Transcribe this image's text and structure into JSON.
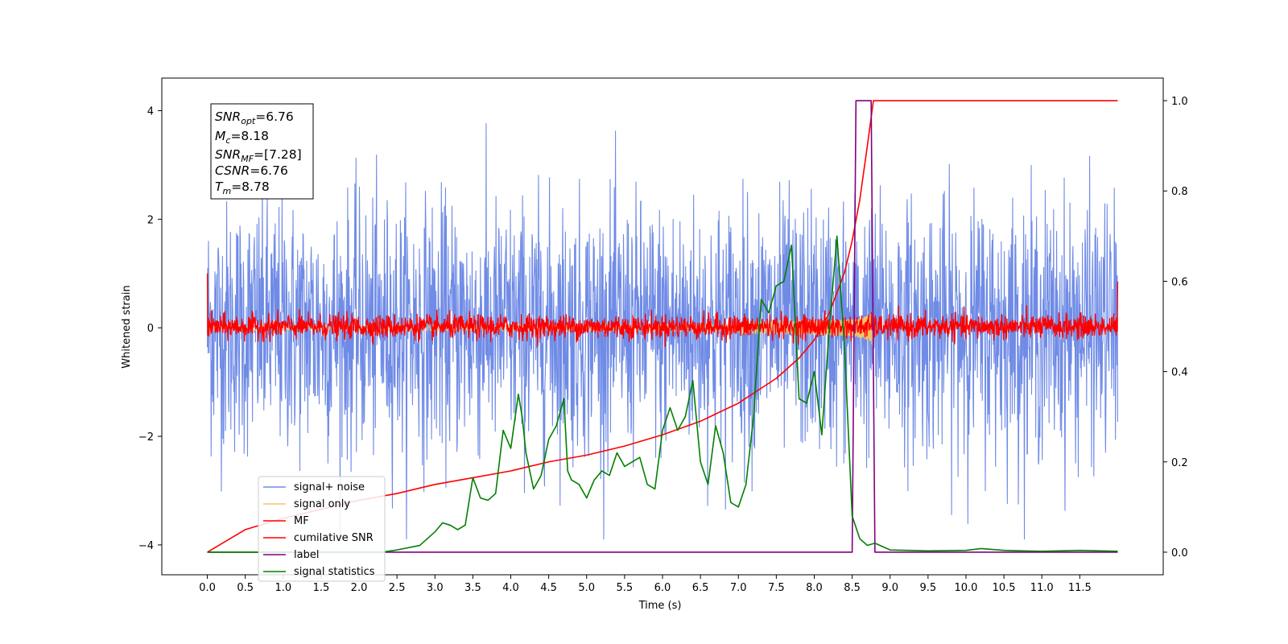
{
  "chart_data": {
    "type": "line",
    "xlabel": "Time (s)",
    "ylabel_left": "Whitened strain",
    "ylabel_right": "",
    "xlim": [
      -0.6,
      12.6
    ],
    "ylim_left": [
      -4.55,
      4.6
    ],
    "ylim_right": [
      -0.05,
      1.05
    ],
    "x_ticks": [
      "0.0",
      "0.5",
      "1.0",
      "1.5",
      "2.0",
      "2.5",
      "3.0",
      "3.5",
      "4.0",
      "4.5",
      "5.0",
      "5.5",
      "6.0",
      "6.5",
      "7.0",
      "7.5",
      "8.0",
      "8.5",
      "9.0",
      "9.5",
      "10.0",
      "10.5",
      "11.0",
      "11.5"
    ],
    "y_ticks_left": [
      "−4",
      "−2",
      "0",
      "2",
      "4"
    ],
    "y_ticks_right": [
      "0.0",
      "0.2",
      "0.4",
      "0.6",
      "0.8",
      "1.0"
    ],
    "grid": false,
    "legend_position": "lower-left",
    "colors": {
      "signal_noise": "#6f8be6",
      "signal_only": "#f5c46a",
      "mf": "#ff0000",
      "cumulative": "#ff0000",
      "label": "#800080",
      "statistics": "#008000"
    },
    "series": [
      {
        "name": "signal+ noise",
        "style": "noisy",
        "x_range": [
          0,
          12
        ],
        "y_approx_range": [
          -3.9,
          4.2
        ]
      },
      {
        "name": "signal only",
        "style": "chirp",
        "x_range": [
          0,
          8.78
        ],
        "peak_amplitude": 0.55
      },
      {
        "name": "MF",
        "style": "noisy",
        "x_range": [
          0,
          12
        ],
        "y_approx_range": [
          -0.25,
          0.45
        ]
      },
      {
        "name": "cumilative SNR",
        "axis": "right",
        "x": [
          0,
          0.5,
          1.0,
          1.5,
          2.0,
          2.5,
          3.0,
          3.5,
          4.0,
          4.5,
          5.0,
          5.5,
          6.0,
          6.5,
          7.0,
          7.5,
          7.8,
          8.0,
          8.2,
          8.4,
          8.5,
          8.6,
          8.7,
          8.78,
          12.0
        ],
        "y": [
          0.0,
          0.05,
          0.075,
          0.095,
          0.115,
          0.13,
          0.15,
          0.165,
          0.18,
          0.2,
          0.215,
          0.235,
          0.26,
          0.29,
          0.33,
          0.385,
          0.43,
          0.47,
          0.53,
          0.62,
          0.69,
          0.78,
          0.9,
          1.0,
          1.0
        ]
      },
      {
        "name": "label",
        "axis": "right",
        "x": [
          0,
          8.5,
          8.55,
          8.75,
          8.8,
          12.0
        ],
        "y": [
          0,
          0,
          1,
          1,
          0,
          0
        ]
      },
      {
        "name": "signal statistics",
        "axis": "right",
        "x": [
          0,
          0.5,
          1.0,
          1.5,
          2.0,
          2.3,
          2.5,
          2.8,
          3.0,
          3.1,
          3.2,
          3.3,
          3.4,
          3.5,
          3.6,
          3.7,
          3.8,
          3.9,
          4.0,
          4.1,
          4.15,
          4.2,
          4.3,
          4.4,
          4.5,
          4.6,
          4.7,
          4.75,
          4.8,
          4.9,
          5.0,
          5.1,
          5.2,
          5.3,
          5.4,
          5.5,
          5.6,
          5.7,
          5.8,
          5.9,
          6.0,
          6.1,
          6.2,
          6.3,
          6.4,
          6.5,
          6.6,
          6.7,
          6.8,
          6.9,
          7.0,
          7.1,
          7.2,
          7.3,
          7.4,
          7.5,
          7.6,
          7.7,
          7.8,
          7.9,
          8.0,
          8.1,
          8.2,
          8.3,
          8.4,
          8.5,
          8.6,
          8.7,
          8.8,
          9.0,
          9.5,
          10.0,
          10.2,
          10.5,
          11.0,
          11.5,
          12.0
        ],
        "y": [
          0.0,
          0.0,
          0.0,
          0.0,
          0.0,
          0.0,
          0.005,
          0.015,
          0.045,
          0.065,
          0.06,
          0.05,
          0.06,
          0.165,
          0.12,
          0.115,
          0.13,
          0.27,
          0.23,
          0.35,
          0.3,
          0.22,
          0.14,
          0.17,
          0.25,
          0.28,
          0.34,
          0.18,
          0.16,
          0.15,
          0.12,
          0.16,
          0.18,
          0.17,
          0.22,
          0.19,
          0.2,
          0.21,
          0.15,
          0.14,
          0.27,
          0.32,
          0.27,
          0.3,
          0.38,
          0.2,
          0.15,
          0.28,
          0.22,
          0.11,
          0.1,
          0.15,
          0.3,
          0.56,
          0.53,
          0.59,
          0.6,
          0.68,
          0.34,
          0.33,
          0.4,
          0.26,
          0.5,
          0.7,
          0.45,
          0.08,
          0.03,
          0.015,
          0.02,
          0.005,
          0.003,
          0.004,
          0.008,
          0.004,
          0.002,
          0.004,
          0.002
        ]
      }
    ]
  },
  "stats_box": {
    "snr_opt": {
      "base": "SNR",
      "sub": "opt",
      "value": "=6.76"
    },
    "mc": {
      "base": "M",
      "sub": "c",
      "value": "=8.18"
    },
    "snr_mf": {
      "base": "SNR",
      "sub": "MF",
      "value": "=[7.28]"
    },
    "csnr": {
      "base": "CSNR",
      "sub": "",
      "value": "=6.76"
    },
    "tm": {
      "base": "T",
      "sub": "m",
      "value": "=8.78"
    }
  },
  "legend": {
    "items": [
      {
        "label": "signal+ noise",
        "color": "#6f8be6"
      },
      {
        "label": "signal only",
        "color": "#f5c46a"
      },
      {
        "label": "MF",
        "color": "#ff0000"
      },
      {
        "label": "cumilative SNR",
        "color": "#ff0000"
      },
      {
        "label": "label",
        "color": "#800080"
      },
      {
        "label": "signal statistics",
        "color": "#008000"
      }
    ]
  }
}
